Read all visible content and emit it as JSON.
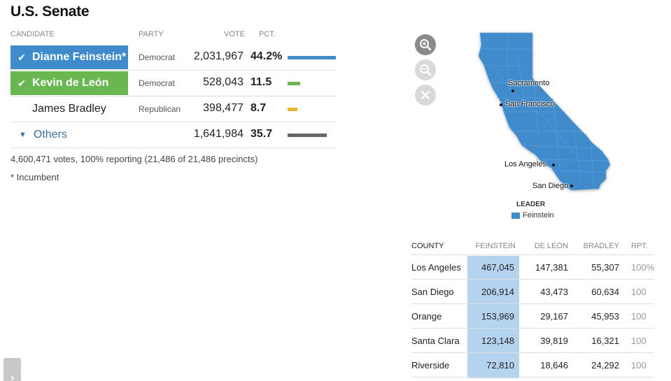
{
  "title": "U.S. Senate",
  "columns": {
    "candidate": "Candidate",
    "party": "Party",
    "vote": "Vote",
    "pct": "Pct."
  },
  "candidates": [
    {
      "name": "Dianne Feinstein*",
      "party": "Democrat",
      "votes": "2,031,967",
      "pct": "44.2%",
      "pct_value": 44.2,
      "color": "#3f8bcb",
      "advanced": true
    },
    {
      "name": "Kevin de León",
      "party": "Democrat",
      "votes": "528,043",
      "pct": "11.5",
      "pct_value": 11.5,
      "color": "#6ab650",
      "advanced": true
    },
    {
      "name": "James Bradley",
      "party": "Republican",
      "votes": "398,477",
      "pct": "8.7",
      "pct_value": 8.7,
      "color": "#e8b92e",
      "advanced": false
    }
  ],
  "others": {
    "label": "Others",
    "votes": "1,641,984",
    "pct": "35.7",
    "pct_value": 35.7,
    "color": "#666666"
  },
  "summary": "4,600,471 votes, 100% reporting (21,486 of 21,486 precincts)",
  "incumbent_note": "* Incumbent",
  "map": {
    "fill_color": "#3f8bcb",
    "cities": [
      "Sacramento",
      "San Francisco",
      "Los Angeles",
      "San Diego"
    ],
    "controls": [
      "zoom-in-icon",
      "zoom-out-icon",
      "close-icon"
    ]
  },
  "legend": {
    "title": "LEADER",
    "item": "Feinstein",
    "color": "#3f8bcb"
  },
  "county_table": {
    "headers": {
      "county": "County",
      "feinstein": "Feinstein",
      "deleon": "De León",
      "bradley": "Bradley",
      "rpt": "Rpt."
    },
    "rows": [
      {
        "county": "Los Angeles",
        "feinstein": "467,045",
        "deleon": "147,381",
        "bradley": "55,307",
        "rpt": "100%"
      },
      {
        "county": "San Diego",
        "feinstein": "206,914",
        "deleon": "43,473",
        "bradley": "60,634",
        "rpt": "100"
      },
      {
        "county": "Orange",
        "feinstein": "153,969",
        "deleon": "29,167",
        "bradley": "45,953",
        "rpt": "100"
      },
      {
        "county": "Santa Clara",
        "feinstein": "123,148",
        "deleon": "39,819",
        "bradley": "16,321",
        "rpt": "100"
      },
      {
        "county": "Riverside",
        "feinstein": "72,810",
        "deleon": "18,646",
        "bradley": "24,292",
        "rpt": "100"
      }
    ]
  }
}
